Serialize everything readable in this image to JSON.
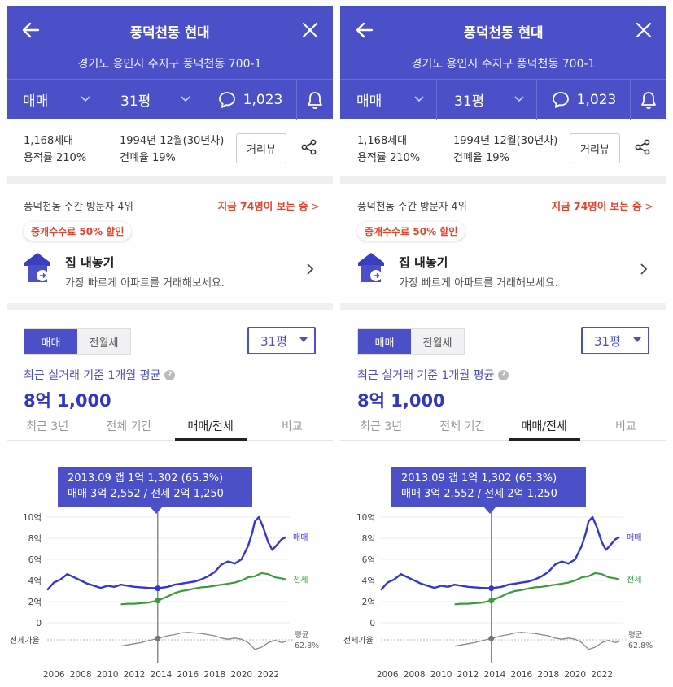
{
  "header": {
    "title": "풍덕천동 현대",
    "address": "경기도 용인시 수지구 풍덕천동 700-1",
    "trade_type": "매매",
    "area": "31평",
    "comment_count": "1,023"
  },
  "info": {
    "households": "1,168세대",
    "floor_area_ratio": "용적률 210%",
    "built": "1994년 12월(30년차)",
    "coverage_ratio": "건폐율 19%",
    "street_view_label": "거리뷰"
  },
  "visitors": {
    "rank_text": "풍덕천동 주간 방문자 4위",
    "live_text": "지금 74명이 보는 중",
    "live_arrow": ">"
  },
  "promo": {
    "badge": "중개수수료 50% 할인",
    "title": "집 내놓기",
    "subtitle": "가장 빠르게 아파트를 거래해보세요."
  },
  "price": {
    "seg_active": "매매",
    "seg_inactive": "전월세",
    "area_select": "31평",
    "avg_label": "최근 실거래 기준 1개월 평균",
    "avg_value": "8억 1,000",
    "tabs": [
      "최근 3년",
      "전체 기간",
      "매매/전세",
      "비교"
    ],
    "active_tab": 2
  },
  "tooltip": {
    "line1": "2013.09  갭 1억 1,302 (65.3%)",
    "line2": "매매 3억 2,552 / 전세 2억 1,250"
  },
  "chart_data": {
    "type": "line",
    "x_ticks": [
      "2006",
      "2008",
      "2010",
      "2012",
      "2014",
      "2016",
      "2018",
      "2020",
      "2022"
    ],
    "y_ticks": [
      "10억",
      "8억",
      "6억",
      "4억",
      "2억",
      "0"
    ],
    "ylim": [
      0,
      10
    ],
    "y_unit": "억",
    "series": [
      {
        "name": "매매",
        "color": "#3535d6",
        "x": [
          2005.5,
          2006.0,
          2006.5,
          2007.0,
          2007.5,
          2008.0,
          2008.5,
          2009.0,
          2009.5,
          2010.0,
          2010.5,
          2011.0,
          2011.5,
          2012.0,
          2012.5,
          2013.0,
          2013.75,
          2014.5,
          2015.0,
          2015.5,
          2016.0,
          2016.5,
          2017.0,
          2017.5,
          2018.0,
          2018.5,
          2019.0,
          2019.5,
          2020.0,
          2020.5,
          2020.8,
          2021.0,
          2021.3,
          2021.6,
          2022.0,
          2022.3,
          2022.6,
          2023.0,
          2023.3
        ],
        "values": [
          3.1,
          3.8,
          4.1,
          4.6,
          4.3,
          4.0,
          3.7,
          3.5,
          3.3,
          3.5,
          3.4,
          3.6,
          3.5,
          3.4,
          3.35,
          3.3,
          3.26,
          3.4,
          3.6,
          3.7,
          3.8,
          3.9,
          4.1,
          4.4,
          4.8,
          5.5,
          5.8,
          5.6,
          6.0,
          7.3,
          8.5,
          9.6,
          10.0,
          9.1,
          7.6,
          6.9,
          7.3,
          7.9,
          8.1
        ]
      },
      {
        "name": "전세",
        "color": "#3d9a3d",
        "x": [
          2011.0,
          2011.5,
          2012.0,
          2012.5,
          2013.0,
          2013.75,
          2014.5,
          2015.0,
          2015.5,
          2016.0,
          2016.5,
          2017.0,
          2017.5,
          2018.0,
          2018.5,
          2019.0,
          2019.5,
          2020.0,
          2020.5,
          2021.0,
          2021.5,
          2022.0,
          2022.5,
          2023.0,
          2023.3
        ],
        "values": [
          1.75,
          1.8,
          1.8,
          1.85,
          1.9,
          2.1,
          2.5,
          2.8,
          3.0,
          3.1,
          3.25,
          3.35,
          3.4,
          3.5,
          3.6,
          3.7,
          3.8,
          4.0,
          4.3,
          4.4,
          4.7,
          4.6,
          4.3,
          4.2,
          4.1
        ]
      },
      {
        "name": "전세가율",
        "color": "#8a8a8a",
        "x": [
          2011.0,
          2011.5,
          2012.0,
          2012.5,
          2013.0,
          2013.75,
          2014.5,
          2015.0,
          2015.5,
          2016.0,
          2016.5,
          2017.0,
          2017.5,
          2018.0,
          2018.5,
          2019.0,
          2019.5,
          2020.0,
          2020.5,
          2021.0,
          2021.5,
          2022.0,
          2022.5,
          2023.0,
          2023.3
        ],
        "values": [
          52,
          54,
          56,
          58,
          61,
          65.3,
          70,
          72,
          75,
          76,
          75,
          74,
          72,
          70,
          66,
          64,
          66,
          64,
          58,
          46,
          50,
          58,
          62,
          58,
          60
        ]
      }
    ],
    "labels": {
      "sale": "매매",
      "jeonse": "전세",
      "ratio_row": "전세가율",
      "avg_label": "평균",
      "avg_value": "62.8%"
    },
    "cursor_x": 2013.75,
    "ratio_avg": 62.8
  }
}
